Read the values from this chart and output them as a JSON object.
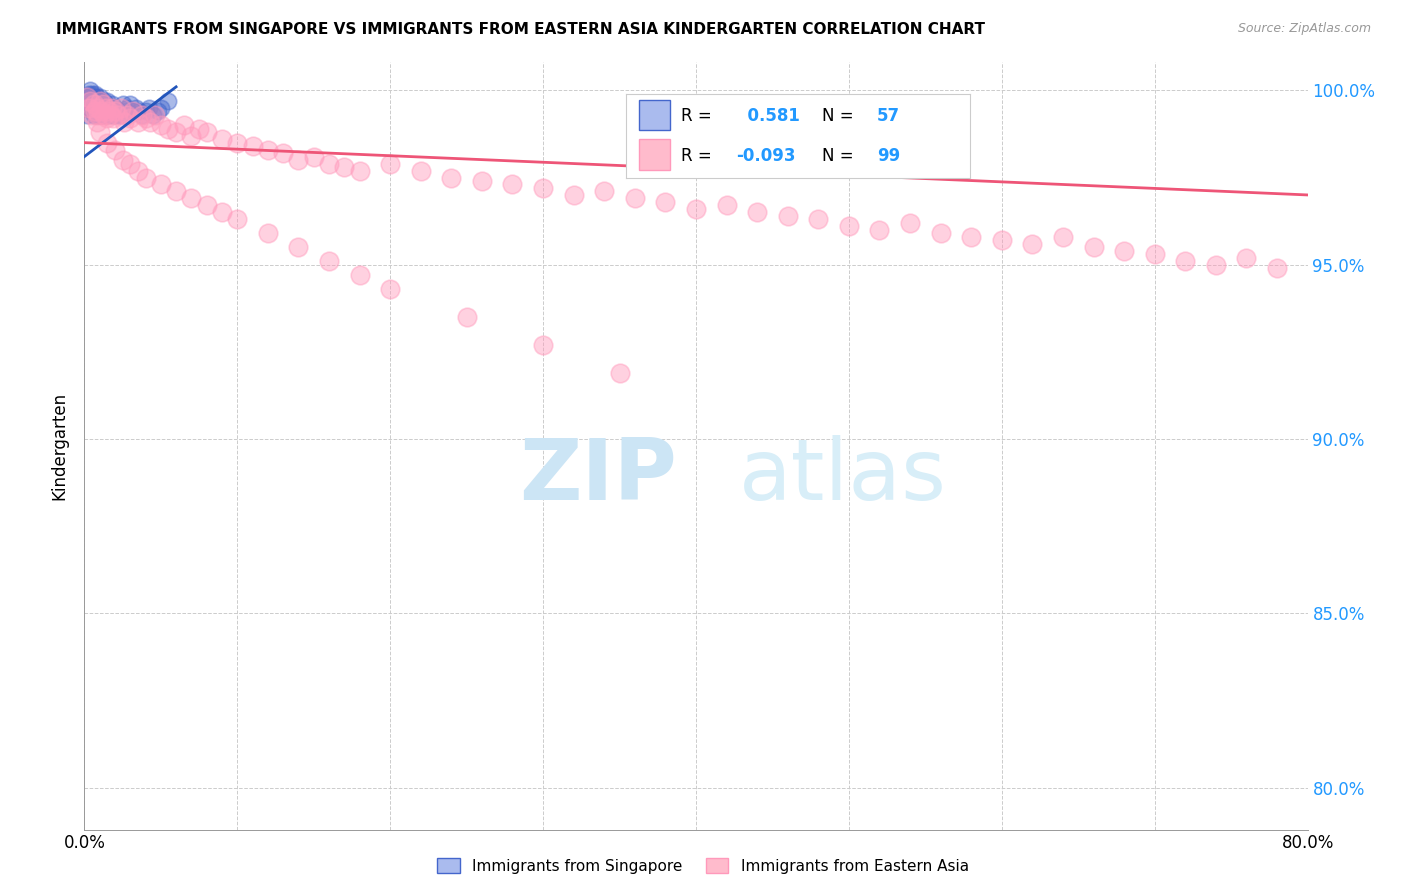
{
  "title": "IMMIGRANTS FROM SINGAPORE VS IMMIGRANTS FROM EASTERN ASIA KINDERGARTEN CORRELATION CHART",
  "source": "Source: ZipAtlas.com",
  "ylabel": "Kindergarten",
  "xlim": [
    0.0,
    0.8
  ],
  "ylim": [
    0.788,
    1.008
  ],
  "ytick_positions": [
    0.8,
    0.85,
    0.9,
    0.95,
    1.0
  ],
  "xtick_positions": [
    0.0,
    0.1,
    0.2,
    0.3,
    0.4,
    0.5,
    0.6,
    0.7,
    0.8
  ],
  "grid_color": "#cccccc",
  "background_color": "#ffffff",
  "watermark_color": "#cce5f5",
  "legend_R1": "0.581",
  "legend_N1": "57",
  "legend_R2": "-0.093",
  "legend_N2": "99",
  "legend_color1": "#aabbee",
  "legend_color2": "#ffbbcc",
  "blue_color": "#4466cc",
  "pink_color": "#ff99bb",
  "trendline_blue": "#2255bb",
  "trendline_pink": "#ee5577",
  "singapore_x": [
    0.001,
    0.002,
    0.002,
    0.003,
    0.003,
    0.004,
    0.004,
    0.004,
    0.005,
    0.005,
    0.005,
    0.006,
    0.006,
    0.006,
    0.007,
    0.007,
    0.007,
    0.008,
    0.008,
    0.008,
    0.009,
    0.009,
    0.01,
    0.01,
    0.01,
    0.011,
    0.011,
    0.012,
    0.012,
    0.013,
    0.013,
    0.014,
    0.014,
    0.015,
    0.015,
    0.016,
    0.017,
    0.018,
    0.019,
    0.02,
    0.021,
    0.022,
    0.023,
    0.025,
    0.027,
    0.028,
    0.03,
    0.032,
    0.034,
    0.036,
    0.038,
    0.04,
    0.042,
    0.045,
    0.048,
    0.05,
    0.055
  ],
  "singapore_y": [
    0.996,
    0.998,
    0.993,
    0.997,
    0.999,
    0.995,
    0.998,
    1.0,
    0.994,
    0.997,
    0.999,
    0.993,
    0.996,
    0.998,
    0.994,
    0.997,
    0.999,
    0.993,
    0.996,
    0.998,
    0.994,
    0.997,
    0.993,
    0.996,
    0.998,
    0.994,
    0.997,
    0.993,
    0.996,
    0.994,
    0.997,
    0.993,
    0.996,
    0.994,
    0.997,
    0.993,
    0.994,
    0.996,
    0.993,
    0.995,
    0.993,
    0.994,
    0.993,
    0.996,
    0.994,
    0.995,
    0.996,
    0.994,
    0.995,
    0.994,
    0.993,
    0.994,
    0.995,
    0.993,
    0.994,
    0.995,
    0.997
  ],
  "eastern_asia_x": [
    0.002,
    0.003,
    0.004,
    0.005,
    0.006,
    0.007,
    0.008,
    0.009,
    0.01,
    0.011,
    0.012,
    0.013,
    0.014,
    0.015,
    0.016,
    0.017,
    0.018,
    0.019,
    0.02,
    0.022,
    0.024,
    0.026,
    0.028,
    0.03,
    0.032,
    0.035,
    0.038,
    0.04,
    0.043,
    0.046,
    0.05,
    0.055,
    0.06,
    0.065,
    0.07,
    0.075,
    0.08,
    0.09,
    0.1,
    0.11,
    0.12,
    0.13,
    0.14,
    0.15,
    0.16,
    0.17,
    0.18,
    0.2,
    0.22,
    0.24,
    0.26,
    0.28,
    0.3,
    0.32,
    0.34,
    0.36,
    0.38,
    0.4,
    0.42,
    0.44,
    0.46,
    0.48,
    0.5,
    0.52,
    0.54,
    0.56,
    0.58,
    0.6,
    0.62,
    0.64,
    0.66,
    0.68,
    0.7,
    0.72,
    0.74,
    0.76,
    0.78,
    0.008,
    0.01,
    0.015,
    0.02,
    0.025,
    0.03,
    0.035,
    0.04,
    0.05,
    0.06,
    0.07,
    0.08,
    0.09,
    0.1,
    0.12,
    0.14,
    0.16,
    0.18,
    0.2,
    0.25,
    0.3,
    0.35
  ],
  "eastern_asia_y": [
    0.998,
    0.995,
    0.997,
    0.993,
    0.996,
    0.994,
    0.995,
    0.993,
    0.997,
    0.994,
    0.996,
    0.993,
    0.995,
    0.992,
    0.994,
    0.993,
    0.995,
    0.992,
    0.994,
    0.993,
    0.995,
    0.991,
    0.993,
    0.992,
    0.994,
    0.991,
    0.993,
    0.992,
    0.991,
    0.993,
    0.99,
    0.989,
    0.988,
    0.99,
    0.987,
    0.989,
    0.988,
    0.986,
    0.985,
    0.984,
    0.983,
    0.982,
    0.98,
    0.981,
    0.979,
    0.978,
    0.977,
    0.979,
    0.977,
    0.975,
    0.974,
    0.973,
    0.972,
    0.97,
    0.971,
    0.969,
    0.968,
    0.966,
    0.967,
    0.965,
    0.964,
    0.963,
    0.961,
    0.96,
    0.962,
    0.959,
    0.958,
    0.957,
    0.956,
    0.958,
    0.955,
    0.954,
    0.953,
    0.951,
    0.95,
    0.952,
    0.949,
    0.991,
    0.988,
    0.985,
    0.983,
    0.98,
    0.979,
    0.977,
    0.975,
    0.973,
    0.971,
    0.969,
    0.967,
    0.965,
    0.963,
    0.959,
    0.955,
    0.951,
    0.947,
    0.943,
    0.935,
    0.927,
    0.919
  ]
}
